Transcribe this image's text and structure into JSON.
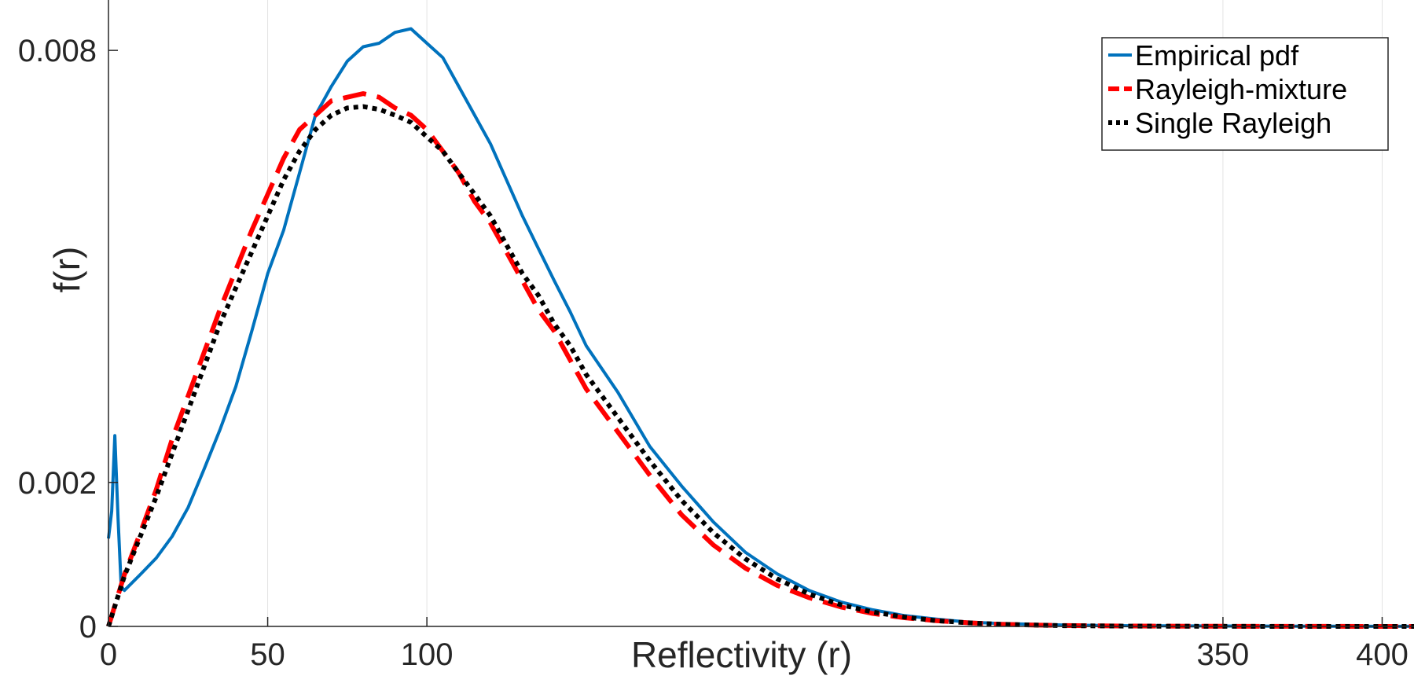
{
  "chart_data": {
    "type": "line",
    "title": "",
    "xlabel": "Reflectivity (r)",
    "ylabel": "f(r)",
    "xlim": [
      0,
      410
    ],
    "ylim": [
      0,
      0.0087
    ],
    "x_ticks": [
      {
        "value": 0,
        "label": "0"
      },
      {
        "value": 50,
        "label": "50"
      },
      {
        "value": 100,
        "label": "100"
      },
      {
        "value": 350,
        "label": "350"
      },
      {
        "value": 400,
        "label": "400"
      }
    ],
    "y_ticks": [
      {
        "value": 0,
        "label": "0"
      },
      {
        "value": 0.002,
        "label": "0.002"
      },
      {
        "value": 0.008,
        "label": "0.008"
      }
    ],
    "grid": true,
    "legend_position": "top-right",
    "series": [
      {
        "name": "Empirical pdf",
        "color": "#0072BD",
        "style": "solid",
        "x": [
          0,
          1,
          2,
          3,
          4,
          5,
          10,
          15,
          20,
          25,
          30,
          35,
          40,
          45,
          50,
          55,
          60,
          65,
          70,
          75,
          80,
          85,
          90,
          95,
          100,
          105,
          110,
          115,
          120,
          125,
          130,
          135,
          140,
          145,
          150,
          160,
          170,
          180,
          190,
          200,
          210,
          220,
          230,
          240,
          250,
          260,
          270,
          280,
          290,
          300,
          320,
          350,
          380,
          400,
          410
        ],
        "y": [
          0.00122,
          0.0016,
          0.00265,
          0.0015,
          0.00055,
          0.0005,
          0.00072,
          0.00095,
          0.00125,
          0.00165,
          0.00218,
          0.00273,
          0.00333,
          0.0041,
          0.0049,
          0.0055,
          0.0063,
          0.0071,
          0.0075,
          0.00785,
          0.00805,
          0.0081,
          0.00825,
          0.0083,
          0.0081,
          0.0079,
          0.0075,
          0.0071,
          0.0067,
          0.0062,
          0.0057,
          0.00525,
          0.0048,
          0.00437,
          0.0039,
          0.00325,
          0.0025,
          0.00195,
          0.00145,
          0.00103,
          0.00073,
          0.0005,
          0.00034,
          0.00023,
          0.00015,
          0.0001,
          6e-05,
          4e-05,
          3e-05,
          2e-05,
          1e-05,
          5e-06,
          2e-06,
          1e-06,
          1e-06
        ]
      },
      {
        "name": "Rayleigh-mixture",
        "color": "#FF0000",
        "style": "dashed",
        "x": [
          0,
          5,
          10,
          15,
          20,
          25,
          30,
          35,
          40,
          45,
          50,
          55,
          60,
          65,
          70,
          75,
          80,
          85,
          90,
          95,
          100,
          105,
          110,
          115,
          120,
          125,
          130,
          135,
          140,
          145,
          150,
          160,
          170,
          180,
          190,
          200,
          210,
          220,
          230,
          240,
          250,
          260,
          270,
          280,
          290,
          300,
          320,
          350,
          380,
          400,
          410
        ],
        "y": [
          0,
          0.00072,
          0.0013,
          0.0019,
          0.0026,
          0.0032,
          0.0038,
          0.0044,
          0.00495,
          0.0055,
          0.006,
          0.0065,
          0.0069,
          0.0071,
          0.0073,
          0.00735,
          0.0074,
          0.00735,
          0.0072,
          0.0071,
          0.0069,
          0.0066,
          0.0063,
          0.0059,
          0.0056,
          0.0052,
          0.0048,
          0.0044,
          0.0041,
          0.0037,
          0.0033,
          0.0027,
          0.0021,
          0.00155,
          0.00113,
          0.00081,
          0.00057,
          0.0004,
          0.00027,
          0.00018,
          0.00012,
          8e-05,
          5e-05,
          3e-05,
          2e-05,
          1.2e-05,
          5e-06,
          2e-06,
          1e-06,
          0,
          0
        ]
      },
      {
        "name": "Single Rayleigh",
        "color": "#000000",
        "style": "dotted",
        "x": [
          0,
          5,
          10,
          15,
          20,
          25,
          30,
          35,
          40,
          45,
          50,
          55,
          60,
          65,
          70,
          75,
          80,
          85,
          90,
          95,
          100,
          105,
          110,
          115,
          120,
          125,
          130,
          135,
          140,
          145,
          150,
          160,
          170,
          180,
          190,
          200,
          210,
          220,
          230,
          240,
          250,
          260,
          270,
          280,
          290,
          300,
          320,
          350,
          380,
          400,
          410
        ],
        "y": [
          0,
          0.0007,
          0.00125,
          0.0018,
          0.0024,
          0.003,
          0.0036,
          0.0042,
          0.0047,
          0.0052,
          0.0057,
          0.0062,
          0.0066,
          0.0069,
          0.0071,
          0.0072,
          0.00722,
          0.00718,
          0.0071,
          0.007,
          0.0068,
          0.0066,
          0.0063,
          0.006,
          0.0057,
          0.0053,
          0.0049,
          0.0046,
          0.0042,
          0.0039,
          0.0035,
          0.0029,
          0.0023,
          0.00175,
          0.0013,
          0.00094,
          0.00066,
          0.00045,
          0.0003,
          0.0002,
          0.00013,
          8e-05,
          5e-05,
          3e-05,
          2e-05,
          1e-05,
          4e-06,
          1e-06,
          0,
          0,
          0
        ]
      }
    ]
  }
}
